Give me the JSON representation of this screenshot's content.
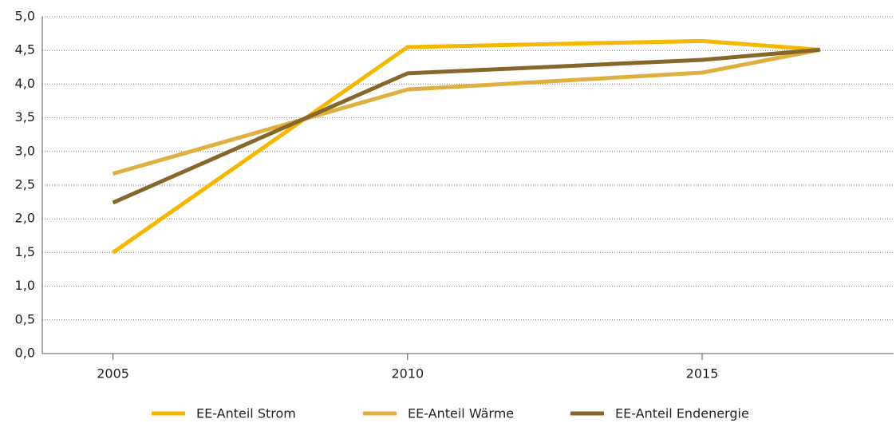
{
  "chart_data": {
    "type": "line",
    "x": [
      2005,
      2010,
      2015,
      2017
    ],
    "series": [
      {
        "name": "EE-Anteil Strom",
        "color": "#f5b800",
        "values": [
          1.5,
          4.55,
          4.64,
          4.51
        ]
      },
      {
        "name": "EE-Anteil Wärme",
        "color": "#dfb040",
        "values": [
          2.67,
          3.92,
          4.17,
          4.51
        ]
      },
      {
        "name": "EE-Anteil Endenergie",
        "color": "#86662a",
        "values": [
          2.24,
          4.16,
          4.36,
          4.51
        ]
      }
    ],
    "xlim": [
      2003.8,
      2018.25
    ],
    "xticks": [
      2005,
      2010,
      2015
    ],
    "ylim": [
      0,
      5
    ],
    "yticks": [
      {
        "value": 0,
        "label": "0,0"
      },
      {
        "value": 0.5,
        "label": "0,5"
      },
      {
        "value": 1,
        "label": "1,0"
      },
      {
        "value": 1.5,
        "label": "1,5"
      },
      {
        "value": 2,
        "label": "2,0"
      },
      {
        "value": 2.5,
        "label": "2,5"
      },
      {
        "value": 3,
        "label": "3,0"
      },
      {
        "value": 3.5,
        "label": "3,5"
      },
      {
        "value": 4,
        "label": "4,0"
      },
      {
        "value": 4.5,
        "label": "4,5"
      },
      {
        "value": 5,
        "label": "5,0"
      }
    ],
    "grid": true,
    "legend": "bottom"
  }
}
